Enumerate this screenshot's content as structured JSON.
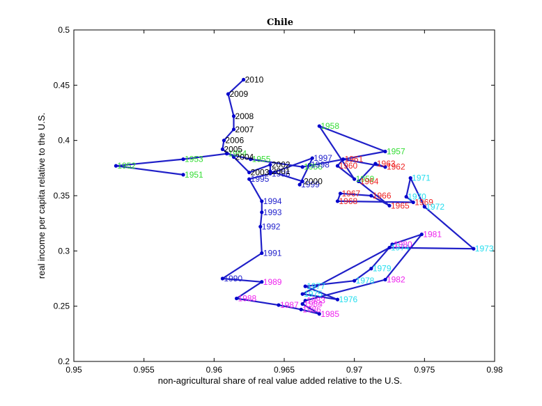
{
  "chart_data": {
    "type": "line",
    "title": "Chile",
    "xlabel": "non-agricultural share of real value added relative to the U.S.",
    "ylabel": "real income per capita relative to the U.S.",
    "xlim": [
      0.95,
      0.98
    ],
    "ylim": [
      0.2,
      0.5
    ],
    "x_ticks": [
      0.95,
      0.955,
      0.96,
      0.965,
      0.97,
      0.975,
      0.98
    ],
    "x_tick_labels": [
      "0.95",
      "0.955",
      "0.96",
      "0.965",
      "0.97",
      "0.975",
      "0.98"
    ],
    "y_ticks": [
      0.2,
      0.25,
      0.3,
      0.35,
      0.4,
      0.45,
      0.5
    ],
    "y_tick_labels": [
      "0.2",
      "0.25",
      "0.3",
      "0.35",
      "0.4",
      "0.45",
      "0.5"
    ],
    "grid": false,
    "line_color": "#1f1fc8",
    "marker_color": "#0000cc",
    "series": [
      {
        "points": [
          {
            "year": "1951",
            "x": 0.9578,
            "y": 0.369,
            "color": "#33dd33"
          },
          {
            "year": "1952",
            "x": 0.953,
            "y": 0.377,
            "color": "#33dd33"
          },
          {
            "year": "1953",
            "x": 0.9578,
            "y": 0.383,
            "color": "#33dd33"
          },
          {
            "year": "1954",
            "x": 0.9609,
            "y": 0.388,
            "color": "#33dd33"
          },
          {
            "year": "1955",
            "x": 0.9626,
            "y": 0.383,
            "color": "#33dd33"
          },
          {
            "year": "1956",
            "x": 0.9663,
            "y": 0.376,
            "color": "#33dd33"
          },
          {
            "year": "1957",
            "x": 0.9722,
            "y": 0.39,
            "color": "#33dd33"
          },
          {
            "year": "1958",
            "x": 0.9675,
            "y": 0.413,
            "color": "#33dd33"
          },
          {
            "year": "1959",
            "x": 0.97,
            "y": 0.365,
            "color": "#33dd33"
          },
          {
            "year": "1960",
            "x": 0.9688,
            "y": 0.377,
            "color": "#ee2222"
          },
          {
            "year": "1961",
            "x": 0.9692,
            "y": 0.383,
            "color": "#ee2222"
          },
          {
            "year": "1962",
            "x": 0.9722,
            "y": 0.376,
            "color": "#ee2222"
          },
          {
            "year": "1963",
            "x": 0.9715,
            "y": 0.379,
            "color": "#ee2222"
          },
          {
            "year": "1964",
            "x": 0.9703,
            "y": 0.363,
            "color": "#ee2222"
          },
          {
            "year": "1965",
            "x": 0.9725,
            "y": 0.341,
            "color": "#ee2222"
          },
          {
            "year": "1966",
            "x": 0.9712,
            "y": 0.35,
            "color": "#ee2222"
          },
          {
            "year": "1967",
            "x": 0.969,
            "y": 0.352,
            "color": "#ee2222"
          },
          {
            "year": "1968",
            "x": 0.9688,
            "y": 0.345,
            "color": "#ee2222"
          },
          {
            "year": "1969",
            "x": 0.9742,
            "y": 0.344,
            "color": "#ee2222"
          },
          {
            "year": "1970",
            "x": 0.9737,
            "y": 0.349,
            "color": "#22ddee"
          },
          {
            "year": "1971",
            "x": 0.974,
            "y": 0.366,
            "color": "#22ddee"
          },
          {
            "year": "1972",
            "x": 0.975,
            "y": 0.34,
            "color": "#22ddee"
          },
          {
            "year": "1973",
            "x": 0.9785,
            "y": 0.302,
            "color": "#22ddee"
          },
          {
            "year": "1974",
            "x": 0.9725,
            "y": 0.303,
            "color": "#22ddee"
          },
          {
            "year": "1975",
            "x": 0.9663,
            "y": 0.261,
            "color": "#22ddee"
          },
          {
            "year": "1976",
            "x": 0.9688,
            "y": 0.256,
            "color": "#22ddee"
          },
          {
            "year": "1977",
            "x": 0.9665,
            "y": 0.268,
            "color": "#22ddee"
          },
          {
            "year": "1978",
            "x": 0.97,
            "y": 0.273,
            "color": "#22ddee"
          },
          {
            "year": "1979",
            "x": 0.9712,
            "y": 0.284,
            "color": "#22ddee"
          },
          {
            "year": "1980",
            "x": 0.9727,
            "y": 0.306,
            "color": "#ee22ee"
          },
          {
            "year": "1981",
            "x": 0.9748,
            "y": 0.315,
            "color": "#ee22ee"
          },
          {
            "year": "1982",
            "x": 0.9722,
            "y": 0.274,
            "color": "#ee22ee"
          },
          {
            "year": "1983",
            "x": 0.9665,
            "y": 0.255,
            "color": "#ee22ee"
          },
          {
            "year": "1984",
            "x": 0.9663,
            "y": 0.252,
            "color": "#ee22ee"
          },
          {
            "year": "1985",
            "x": 0.9675,
            "y": 0.243,
            "color": "#ee22ee"
          },
          {
            "year": "1986",
            "x": 0.9662,
            "y": 0.247,
            "color": "#ee22ee"
          },
          {
            "year": "1987",
            "x": 0.9646,
            "y": 0.251,
            "color": "#ee22ee"
          },
          {
            "year": "1988",
            "x": 0.9616,
            "y": 0.257,
            "color": "#ee22ee"
          },
          {
            "year": "1989",
            "x": 0.9634,
            "y": 0.272,
            "color": "#ee22ee"
          },
          {
            "year": "1990",
            "x": 0.9606,
            "y": 0.275,
            "color": "#2222cc"
          },
          {
            "year": "1991",
            "x": 0.9634,
            "y": 0.298,
            "color": "#2222cc"
          },
          {
            "year": "1992",
            "x": 0.9633,
            "y": 0.322,
            "color": "#2222cc"
          },
          {
            "year": "1993",
            "x": 0.9634,
            "y": 0.335,
            "color": "#2222cc"
          },
          {
            "year": "1994",
            "x": 0.9634,
            "y": 0.345,
            "color": "#2222cc"
          },
          {
            "year": "1995",
            "x": 0.9625,
            "y": 0.365,
            "color": "#2222cc"
          },
          {
            "year": "1996",
            "x": 0.964,
            "y": 0.37,
            "color": "#2222cc"
          },
          {
            "year": "1997",
            "x": 0.967,
            "y": 0.384,
            "color": "#2222cc"
          },
          {
            "year": "1998",
            "x": 0.9668,
            "y": 0.378,
            "color": "#2222cc"
          },
          {
            "year": "1999",
            "x": 0.9661,
            "y": 0.36,
            "color": "#2222cc"
          },
          {
            "year": "2000",
            "x": 0.9663,
            "y": 0.363,
            "color": "#000000"
          },
          {
            "year": "2001",
            "x": 0.964,
            "y": 0.372,
            "color": "#000000"
          },
          {
            "year": "2002",
            "x": 0.964,
            "y": 0.378,
            "color": "#000000"
          },
          {
            "year": "2003",
            "x": 0.9625,
            "y": 0.371,
            "color": "#000000"
          },
          {
            "year": "2004",
            "x": 0.9614,
            "y": 0.385,
            "color": "#000000"
          },
          {
            "year": "2005",
            "x": 0.9606,
            "y": 0.392,
            "color": "#000000"
          },
          {
            "year": "2006",
            "x": 0.9607,
            "y": 0.4,
            "color": "#000000"
          },
          {
            "year": "2007",
            "x": 0.9614,
            "y": 0.41,
            "color": "#000000"
          },
          {
            "year": "2008",
            "x": 0.9614,
            "y": 0.422,
            "color": "#000000"
          },
          {
            "year": "2009",
            "x": 0.961,
            "y": 0.442,
            "color": "#000000"
          },
          {
            "year": "2010",
            "x": 0.9621,
            "y": 0.455,
            "color": "#000000"
          }
        ]
      }
    ]
  }
}
